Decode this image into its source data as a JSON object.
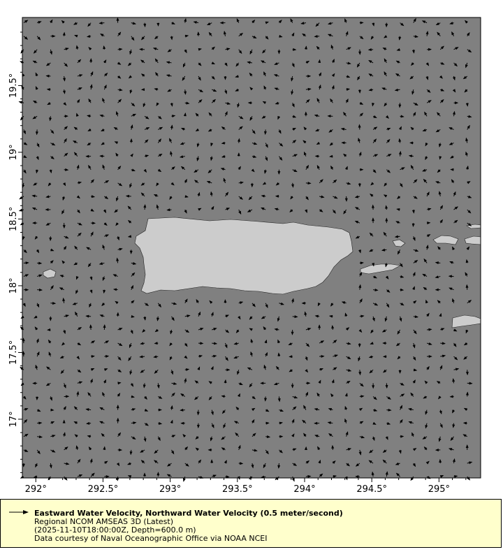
{
  "chart_data": {
    "type": "vector-map",
    "title": "Eastward Water Velocity, Northward Water Velocity (0.5 meter/second)",
    "x_ticks": [
      "292°",
      "292.5°",
      "293°",
      "293.5°",
      "294°",
      "294.5°",
      "295°"
    ],
    "x_tick_values": [
      292,
      292.5,
      293,
      293.5,
      294,
      294.5,
      295
    ],
    "y_ticks": [
      "17°",
      "17.5°",
      "18°",
      "18.5°",
      "19°",
      "19.5°"
    ],
    "y_tick_values": [
      17,
      17.5,
      18,
      18.5,
      19,
      19.5
    ],
    "xlim": [
      291.9,
      295.31
    ],
    "ylim": [
      16.56,
      20.01
    ],
    "grid_step_deg": 0.1,
    "reference_vector": "0.5 meter/second"
  },
  "colors": {
    "ocean": "#808080",
    "land": "#cccccc",
    "arrow": "#000000",
    "legend_bg": "#ffffcc"
  },
  "legend": {
    "line1": "Eastward Water Velocity, Northward Water Velocity (0.5 meter/second)",
    "line2": "Regional NCOM AMSEAS 3D (Latest)",
    "line3": "(2025-11-10T18:00:00Z, Depth=600.0 m)",
    "line4": "Data courtesy of Naval Oceanographic Office via NOAA NCEI"
  }
}
